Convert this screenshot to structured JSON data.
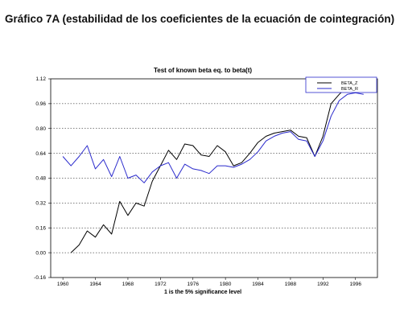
{
  "page": {
    "title": "Gráfico 7A (estabilidad de los coeficientes de la ecuación de cointegración)"
  },
  "chart_data": {
    "type": "line",
    "title": "Test of known beta eq. to beta(t)",
    "xlabel": "1 is the 5% significance level",
    "ylabel": "",
    "xlim": [
      1958.5,
      1998.7
    ],
    "ylim": [
      -0.16,
      1.12
    ],
    "xticks": [
      "1960",
      "1964",
      "1968",
      "1972",
      "1976",
      "1980",
      "1984",
      "1988",
      "1992",
      "1996"
    ],
    "yticks": [
      "1.12",
      "0.96",
      "0.80",
      "0.64",
      "0.48",
      "0.32",
      "0.16",
      "0.00",
      "-0.16"
    ],
    "grid": "horizontal dotted",
    "legend_position": "top-right",
    "colors": {
      "BETA_Z": "#000000",
      "BETA_R": "#2a2acc"
    },
    "series": [
      {
        "name": "BETA_Z",
        "x": [
          1961,
          1962,
          1963,
          1964,
          1965,
          1966,
          1967,
          1968,
          1969,
          1970,
          1971,
          1972,
          1973,
          1974,
          1975,
          1976,
          1977,
          1978,
          1979,
          1980,
          1981,
          1982,
          1983,
          1984,
          1985,
          1986,
          1987,
          1988,
          1989,
          1990,
          1991,
          1992,
          1993,
          1994,
          1995,
          1996,
          1997
        ],
        "values": [
          0.0,
          0.05,
          0.14,
          0.1,
          0.18,
          0.12,
          0.33,
          0.24,
          0.32,
          0.3,
          0.46,
          0.56,
          0.66,
          0.6,
          0.7,
          0.69,
          0.63,
          0.62,
          0.69,
          0.65,
          0.56,
          0.58,
          0.64,
          0.71,
          0.75,
          0.77,
          0.78,
          0.79,
          0.75,
          0.74,
          0.62,
          0.75,
          0.96,
          1.02,
          1.07,
          1.11,
          1.08
        ]
      },
      {
        "name": "BETA_R",
        "x": [
          1960,
          1961,
          1962,
          1963,
          1964,
          1965,
          1966,
          1967,
          1968,
          1969,
          1970,
          1971,
          1972,
          1973,
          1974,
          1975,
          1976,
          1977,
          1978,
          1979,
          1980,
          1981,
          1982,
          1983,
          1984,
          1985,
          1986,
          1987,
          1988,
          1989,
          1990,
          1991,
          1992,
          1993,
          1994,
          1995,
          1996,
          1997
        ],
        "values": [
          0.62,
          0.56,
          0.62,
          0.69,
          0.54,
          0.6,
          0.49,
          0.62,
          0.48,
          0.5,
          0.45,
          0.52,
          0.56,
          0.58,
          0.48,
          0.57,
          0.54,
          0.53,
          0.51,
          0.56,
          0.56,
          0.55,
          0.57,
          0.6,
          0.65,
          0.72,
          0.75,
          0.77,
          0.78,
          0.73,
          0.72,
          0.62,
          0.72,
          0.88,
          0.98,
          1.02,
          1.03,
          1.02
        ]
      }
    ]
  }
}
